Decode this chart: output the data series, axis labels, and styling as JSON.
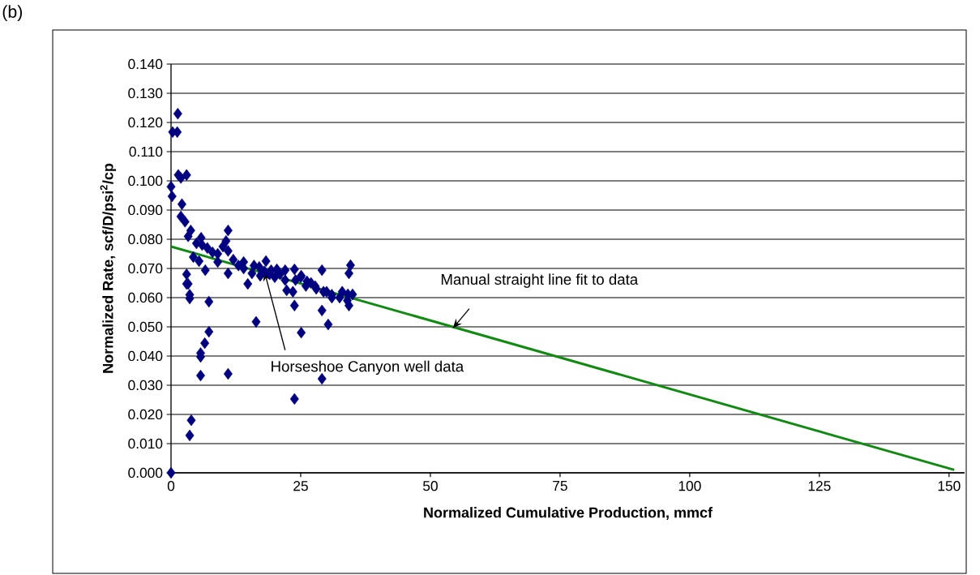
{
  "chart_data": {
    "type": "scatter",
    "xlabel": "Normalized Cumulative Production, mmcf",
    "ylabel": "Normalized Rate, scf/D/psi$^{2}$/cp",
    "annotations": [
      "(b)",
      {
        "text": "Manual straight line fit to data",
        "x": 54.3,
        "y": 0.0494
      },
      {
        "text": "Horseshoe Canyon well data",
        "x": 18,
        "y": 0.069
      }
    ],
    "xlim": [
      0,
      153
    ],
    "xticks": [
      0,
      25,
      50,
      75,
      100,
      125,
      150
    ],
    "ylim": [
      0,
      0.14
    ],
    "yticks": [
      {
        "value": 0,
        "label": "0.000"
      },
      {
        "value": 0.01,
        "label": "0.010"
      },
      {
        "value": 0.02,
        "label": "0.020"
      },
      {
        "value": 0.03,
        "label": "0.030"
      },
      {
        "value": 0.04,
        "label": "0.040"
      },
      {
        "value": 0.05,
        "label": "0.050"
      },
      {
        "value": 0.06,
        "label": "0.060"
      },
      {
        "value": 0.07,
        "label": "0.070"
      },
      {
        "value": 0.08,
        "label": "0.080"
      },
      {
        "value": 0.09,
        "label": "0.090"
      },
      {
        "value": 0.1,
        "label": "0.100"
      },
      {
        "value": 0.11,
        "label": "0.110"
      },
      {
        "value": 0.12,
        "label": "0.120"
      },
      {
        "value": 0.13,
        "label": "0.130"
      },
      {
        "value": 0.14,
        "label": "0.140"
      }
    ],
    "grid": "y",
    "series": [
      {
        "color": "#000080",
        "marker": "diamond",
        "x": [
          0,
          1.3,
          0.3,
          1.2,
          1.4,
          3.0,
          1.9,
          0,
          0.2,
          2.1,
          1.9,
          2.7,
          3.8,
          3.3,
          11,
          5.8,
          4.9,
          4.3,
          5.4,
          6.6,
          9.0,
          11,
          14.8,
          18.3,
          3.0,
          3.0,
          3.3,
          3.6,
          3.6,
          7.3,
          16.4,
          7.3,
          6.5,
          5.7,
          5.7,
          5.7,
          11.0,
          3.9,
          3.6,
          23.8,
          25.1,
          29.1,
          30.3,
          34.6,
          34.3,
          34.3,
          29.1,
          23.8,
          29.1,
          22.3,
          23.5,
          14,
          20.4,
          22,
          23.8,
          25.1,
          26.2,
          27.8,
          29.4,
          31,
          32.5,
          34.1,
          35,
          15.6,
          17.2,
          19.3,
          10.6,
          6,
          7,
          8,
          9,
          10,
          11,
          12,
          13,
          14,
          16,
          17,
          18,
          19,
          20,
          21,
          22,
          24,
          25,
          26,
          27,
          28,
          30,
          31,
          33,
          34
        ],
        "values": [
          0,
          0.123,
          0.1167,
          0.1167,
          0.102,
          0.102,
          0.101,
          0.098,
          0.0947,
          0.092,
          0.0878,
          0.086,
          0.083,
          0.081,
          0.083,
          0.0805,
          0.0786,
          0.0739,
          0.0725,
          0.0694,
          0.0722,
          0.0683,
          0.0647,
          0.0725,
          0.068,
          0.0647,
          0.0647,
          0.061,
          0.0597,
          0.0586,
          0.0517,
          0.0483,
          0.0444,
          0.041,
          0.0397,
          0.0333,
          0.0339,
          0.018,
          0.0128,
          0.0573,
          0.048,
          0.0556,
          0.0508,
          0.0711,
          0.0683,
          0.0573,
          0.0322,
          0.0253,
          0.0694,
          0.0625,
          0.062,
          0.0722,
          0.0697,
          0.0694,
          0.0697,
          0.0675,
          0.0656,
          0.0639,
          0.062,
          0.06,
          0.06,
          0.0611,
          0.0611,
          0.0683,
          0.0675,
          0.0694,
          0.0794,
          0.078,
          0.077,
          0.0755,
          0.075,
          0.0775,
          0.076,
          0.073,
          0.071,
          0.07,
          0.071,
          0.0705,
          0.069,
          0.068,
          0.067,
          0.068,
          0.066,
          0.066,
          0.067,
          0.064,
          0.065,
          0.063,
          0.062,
          0.061,
          0.062,
          0.059
        ]
      },
      {
        "type": "line",
        "color": "#108a10",
        "line_style": "solid",
        "marker": "none",
        "x": [
          0,
          151
        ],
        "values": [
          0.0775,
          0.001
        ]
      }
    ]
  }
}
